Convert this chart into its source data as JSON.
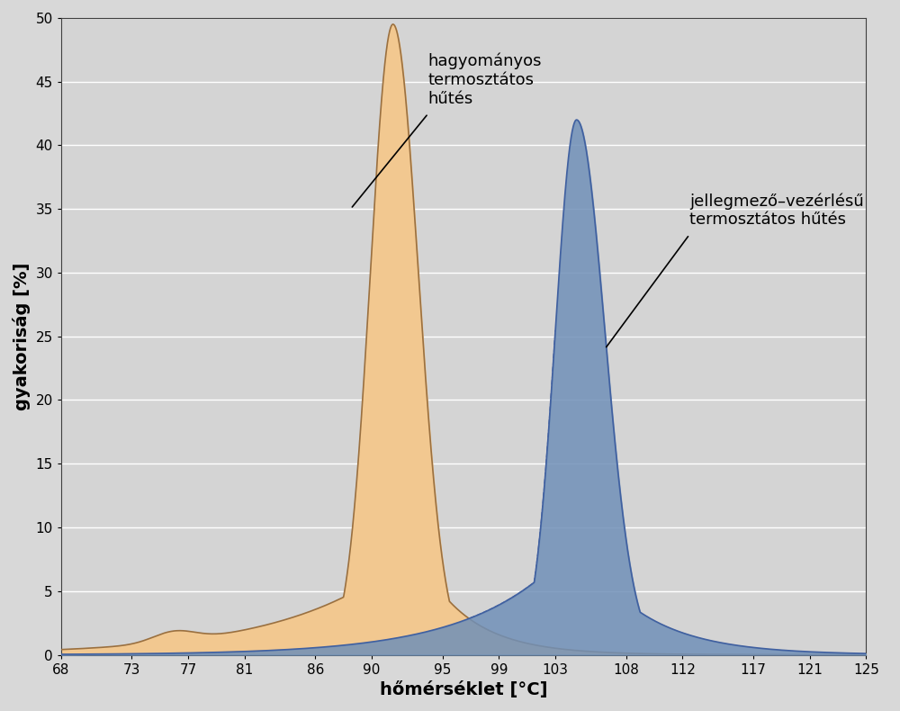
{
  "xlabel": "hőmérséklet [°C]",
  "ylabel": "gyakoriság [%]",
  "xlim": [
    68,
    125
  ],
  "ylim": [
    0,
    50
  ],
  "xticks": [
    68,
    73,
    77,
    81,
    86,
    90,
    95,
    99,
    103,
    108,
    112,
    117,
    121,
    125
  ],
  "yticks": [
    0,
    5,
    10,
    15,
    20,
    25,
    30,
    35,
    40,
    45,
    50
  ],
  "bg_color": "#d8d8d8",
  "plot_bg_color": "#d4d4d4",
  "orange_fill": "#f2c890",
  "orange_edge": "#9a7040",
  "blue_fill": "#7090b8",
  "blue_edge": "#4060a0",
  "label1": "hagyományos\ntermosztátos\nhűtés",
  "label2": "jellegmező–vezérlésű\ntermosztátos hűtés",
  "peak1_x": 91.5,
  "peak1_y": 49.5,
  "peak2_x": 104.5,
  "peak2_y": 42.0,
  "ann1_tip_x": 88.5,
  "ann1_tip_y": 35.0,
  "ann1_txt_x": 94.0,
  "ann1_txt_y": 42.5,
  "ann2_tip_x": 106.5,
  "ann2_tip_y": 24.0,
  "ann2_txt_x": 112.5,
  "ann2_txt_y": 33.0
}
